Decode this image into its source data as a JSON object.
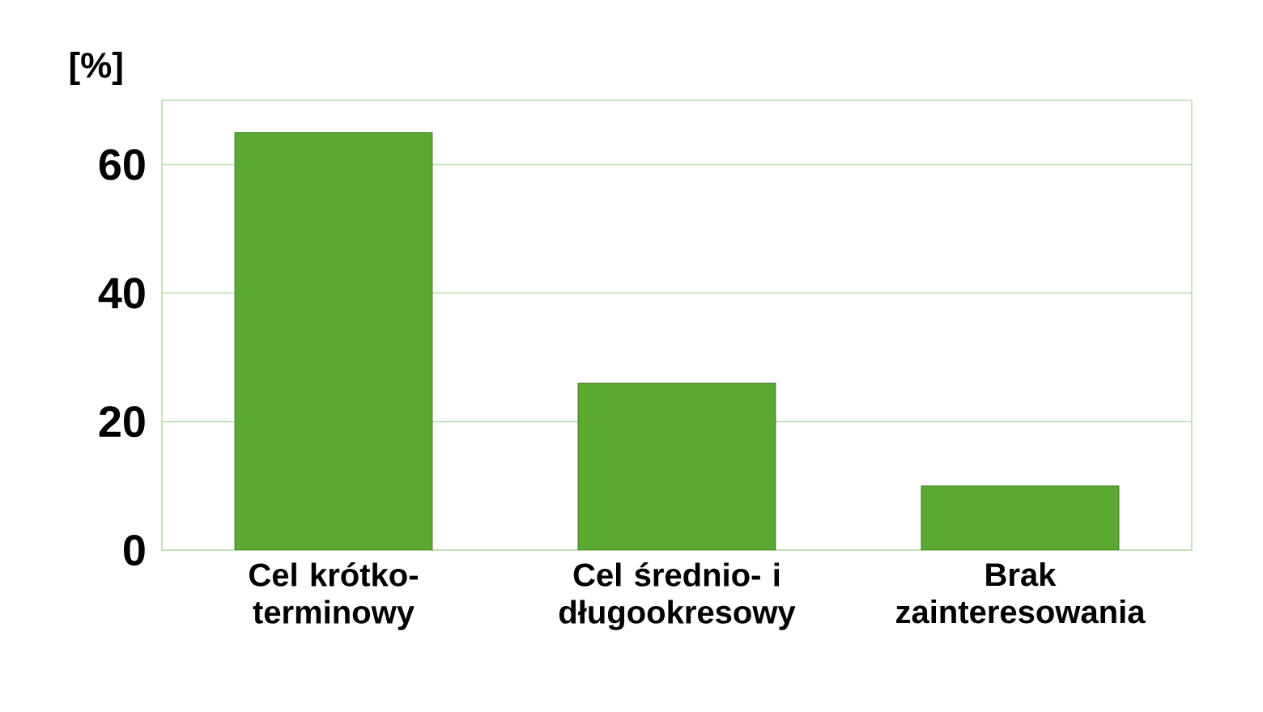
{
  "chart_data": {
    "type": "bar",
    "ylabel": "[%]",
    "categories": [
      "Cel krótko-terminowy",
      "Cel średnio- i długookresowy",
      "Brak zainteresowania"
    ],
    "values": [
      65,
      26,
      10
    ],
    "color": "#5aaa32",
    "ylim": [
      0,
      70
    ],
    "yticks": [
      0,
      20,
      40,
      60
    ],
    "grid": "y"
  }
}
